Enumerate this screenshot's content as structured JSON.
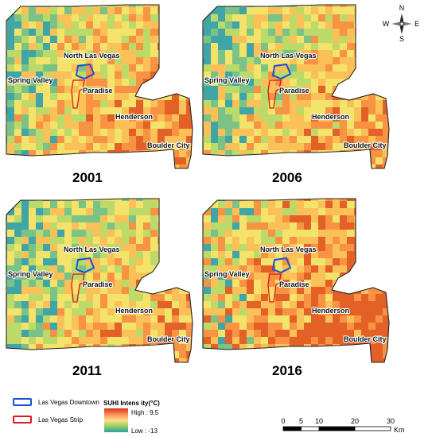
{
  "maps": [
    {
      "year": "2001",
      "hotness": 0.55
    },
    {
      "year": "2006",
      "hotness": 0.5
    },
    {
      "year": "2011",
      "hotness": 0.45
    },
    {
      "year": "2016",
      "hotness": 0.85
    }
  ],
  "places": {
    "north_las_vegas": "North Las Vegas",
    "spring_valley": "Spring Valley",
    "paradise": "Paradise",
    "henderson": "Henderson",
    "boulder_city": "Boulder City"
  },
  "legend": {
    "downtown": "Las Vegas Downtown",
    "strip": "Las Vegas Strip",
    "downtown_color": "#1a4fd6",
    "strip_color": "#e0161b",
    "suhi_title": "SUHI Intens ity(°C)",
    "high": "High : 9.5",
    "low": "Low : -13",
    "ramp_colors": [
      "#d7301f",
      "#fc8d59",
      "#fee08b",
      "#91cf60",
      "#2b9fae"
    ]
  },
  "compass": {
    "n": "N",
    "s": "S",
    "e": "E",
    "w": "W"
  },
  "scalebar": {
    "ticks": [
      "0",
      "5",
      "10",
      "20",
      "30"
    ],
    "unit": "Km"
  }
}
